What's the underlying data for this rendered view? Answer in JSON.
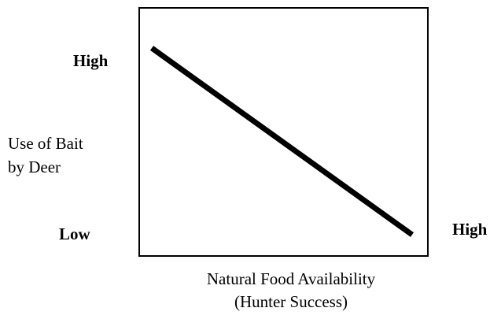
{
  "y_axis": {
    "high_label": "High",
    "low_label": "Low",
    "title_lines": [
      "Use of Bait",
      "by Deer"
    ]
  },
  "x_axis": {
    "high_label": "High",
    "title_lines": [
      "Natural Food Availability",
      "(Hunter Success)"
    ]
  }
}
